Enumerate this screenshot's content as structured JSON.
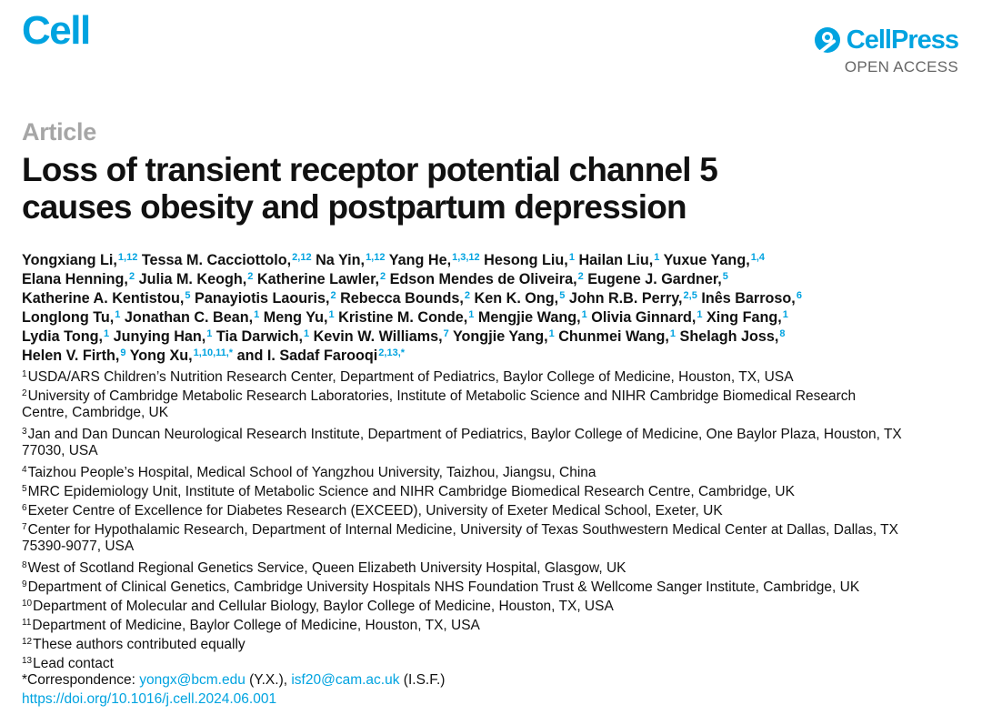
{
  "header": {
    "journal": "Cell",
    "publisher": "CellPress",
    "access": "OPEN ACCESS"
  },
  "article": {
    "type": "Article",
    "title_line1": "Loss of transient receptor potential channel 5",
    "title_line2": "causes obesity and postpartum depression"
  },
  "authors": [
    [
      {
        "name": "Yongxiang Li,",
        "sup": "1,12"
      },
      {
        "name": "Tessa M. Cacciottolo,",
        "sup": "2,12"
      },
      {
        "name": "Na Yin,",
        "sup": "1,12"
      },
      {
        "name": "Yang He,",
        "sup": "1,3,12"
      },
      {
        "name": "Hesong Liu,",
        "sup": "1"
      },
      {
        "name": "Hailan Liu,",
        "sup": "1"
      },
      {
        "name": "Yuxue Yang,",
        "sup": "1,4"
      }
    ],
    [
      {
        "name": "Elana Henning,",
        "sup": "2"
      },
      {
        "name": "Julia M. Keogh,",
        "sup": "2"
      },
      {
        "name": "Katherine Lawler,",
        "sup": "2"
      },
      {
        "name": "Edson Mendes de Oliveira,",
        "sup": "2"
      },
      {
        "name": "Eugene J. Gardner,",
        "sup": "5"
      }
    ],
    [
      {
        "name": "Katherine A. Kentistou,",
        "sup": "5"
      },
      {
        "name": "Panayiotis Laouris,",
        "sup": "2"
      },
      {
        "name": "Rebecca Bounds,",
        "sup": "2"
      },
      {
        "name": "Ken K. Ong,",
        "sup": "5"
      },
      {
        "name": "John R.B. Perry,",
        "sup": "2,5"
      },
      {
        "name": "Inês Barroso,",
        "sup": "6"
      }
    ],
    [
      {
        "name": "Longlong Tu,",
        "sup": "1"
      },
      {
        "name": "Jonathan C. Bean,",
        "sup": "1"
      },
      {
        "name": "Meng Yu,",
        "sup": "1"
      },
      {
        "name": "Kristine M. Conde,",
        "sup": "1"
      },
      {
        "name": "Mengjie Wang,",
        "sup": "1"
      },
      {
        "name": "Olivia Ginnard,",
        "sup": "1"
      },
      {
        "name": "Xing Fang,",
        "sup": "1"
      }
    ],
    [
      {
        "name": "Lydia Tong,",
        "sup": "1"
      },
      {
        "name": "Junying Han,",
        "sup": "1"
      },
      {
        "name": "Tia Darwich,",
        "sup": "1"
      },
      {
        "name": "Kevin W. Williams,",
        "sup": "7"
      },
      {
        "name": "Yongjie Yang,",
        "sup": "1"
      },
      {
        "name": "Chunmei Wang,",
        "sup": "1"
      },
      {
        "name": "Shelagh Joss,",
        "sup": "8"
      }
    ],
    [
      {
        "name": "Helen V. Firth,",
        "sup": "9"
      },
      {
        "name": "Yong Xu,",
        "sup": "1,10,11,*"
      },
      {
        "name": "and I. Sadaf Farooqi",
        "sup": "2,13,*"
      }
    ]
  ],
  "affiliations": [
    {
      "sup": "1",
      "text": "USDA/ARS Children’s Nutrition Research Center, Department of Pediatrics, Baylor College of Medicine, Houston, TX, USA"
    },
    {
      "sup": "2",
      "text": "University of Cambridge Metabolic Research Laboratories, Institute of Metabolic Science and NIHR Cambridge Biomedical Research",
      "cont": "Centre, Cambridge, UK"
    },
    {
      "sup": "3",
      "text": "Jan and Dan Duncan Neurological Research Institute, Department of Pediatrics, Baylor College of Medicine, One Baylor Plaza, Houston, TX",
      "cont": "77030, USA"
    },
    {
      "sup": "4",
      "text": "Taizhou People’s Hospital, Medical School of Yangzhou University, Taizhou, Jiangsu, China"
    },
    {
      "sup": "5",
      "text": "MRC Epidemiology Unit, Institute of Metabolic Science and NIHR Cambridge Biomedical Research Centre, Cambridge, UK"
    },
    {
      "sup": "6",
      "text": "Exeter Centre of Excellence for Diabetes Research (EXCEED), University of Exeter Medical School, Exeter, UK"
    },
    {
      "sup": "7",
      "text": "Center for Hypothalamic Research, Department of Internal Medicine, University of Texas Southwestern Medical Center at Dallas, Dallas, TX",
      "cont": "75390-9077, USA"
    },
    {
      "sup": "8",
      "text": "West of Scotland Regional Genetics Service, Queen Elizabeth University Hospital, Glasgow, UK"
    },
    {
      "sup": "9",
      "text": "Department of Clinical Genetics, Cambridge University Hospitals NHS Foundation Trust & Wellcome Sanger Institute, Cambridge, UK"
    },
    {
      "sup": "10",
      "text": "Department of Molecular and Cellular Biology, Baylor College of Medicine, Houston, TX, USA"
    },
    {
      "sup": "11",
      "text": "Department of Medicine, Baylor College of Medicine, Houston, TX, USA"
    },
    {
      "sup": "12",
      "text": "These authors contributed equally"
    },
    {
      "sup": "13",
      "text": "Lead contact"
    }
  ],
  "correspondence": {
    "label": "*Correspondence:",
    "email1": "yongx@bcm.edu",
    "who1": "(Y.X.),",
    "email2": "isf20@cam.ac.uk",
    "who2": "(I.S.F.)"
  },
  "doi": "https://doi.org/10.1016/j.cell.2024.06.001",
  "colors": {
    "brand_blue": "#00a3e0",
    "article_gray": "#a6a6a6"
  },
  "icons": {
    "publisher_mark": "cellpress-logo-icon"
  }
}
